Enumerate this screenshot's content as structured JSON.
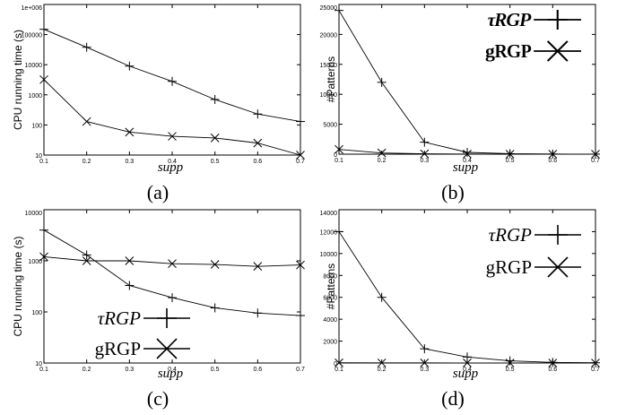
{
  "chart_data": [
    {
      "panel": "a",
      "type": "line",
      "caption": "(a)",
      "xlabel": "supp",
      "ylabel": "CPU running time (s)",
      "yscale": "log",
      "ylim": [
        10,
        1000000
      ],
      "xlim": [
        0.1,
        0.7
      ],
      "x": [
        0.1,
        0.2,
        0.3,
        0.4,
        0.5,
        0.6,
        0.7
      ],
      "x_tick_labels": [
        "0.1",
        "0.2",
        "0.3",
        "0.4",
        "0.5",
        "0.6",
        "0.7"
      ],
      "y_ticks": [
        10,
        100,
        1000,
        10000,
        100000,
        1000000
      ],
      "y_tick_labels": [
        "10",
        "100",
        "1000",
        "10000",
        "100000",
        "1e+006"
      ],
      "legend_position": "top-right",
      "series": [
        {
          "name": "τRGP",
          "marker": "plus",
          "values": [
            150000,
            38000,
            9000,
            2800,
            700,
            230,
            130
          ]
        },
        {
          "name": "gRGP",
          "marker": "cross",
          "values": [
            3200,
            130,
            58,
            42,
            37,
            25,
            10
          ]
        }
      ]
    },
    {
      "panel": "b",
      "type": "line",
      "caption": "(b)",
      "xlabel": "supp",
      "ylabel": "#Patterns",
      "yscale": "linear",
      "ylim": [
        0,
        25000
      ],
      "xlim": [
        0.1,
        0.7
      ],
      "x": [
        0.1,
        0.2,
        0.3,
        0.4,
        0.5,
        0.6,
        0.7
      ],
      "x_tick_labels": [
        "0.1",
        "0.2",
        "0.3",
        "0.4",
        "0.5",
        "0.6",
        "0.7"
      ],
      "y_ticks": [
        0,
        5000,
        10000,
        15000,
        20000,
        25000
      ],
      "y_tick_labels": [
        "0",
        "5000",
        "10000",
        "15000",
        "20000",
        "25000"
      ],
      "legend_position": "top-right",
      "series": [
        {
          "name": "τRGP",
          "marker": "plus",
          "values": [
            24000,
            12000,
            2000,
            300,
            80,
            20,
            5
          ]
        },
        {
          "name": "gRGP",
          "marker": "cross",
          "values": [
            800,
            200,
            60,
            20,
            5,
            2,
            0
          ]
        }
      ]
    },
    {
      "panel": "c",
      "type": "line",
      "caption": "(c)",
      "xlabel": "supp",
      "ylabel": "CPU running time (s)",
      "yscale": "log",
      "ylim": [
        10,
        10000
      ],
      "xlim": [
        0.1,
        0.7
      ],
      "x": [
        0.1,
        0.2,
        0.3,
        0.4,
        0.5,
        0.6,
        0.7
      ],
      "x_tick_labels": [
        "0.1",
        "0.2",
        "0.3",
        "0.4",
        "0.5",
        "0.6",
        "0.7"
      ],
      "y_ticks": [
        10,
        100,
        1000,
        10000
      ],
      "y_tick_labels": [
        "10",
        "100",
        "1000",
        "10000"
      ],
      "legend_position": "bottom-left",
      "series": [
        {
          "name": "τRGP",
          "marker": "plus",
          "values": [
            4000,
            1300,
            330,
            190,
            120,
            95,
            85
          ]
        },
        {
          "name": "gRGP",
          "marker": "cross",
          "values": [
            1200,
            1000,
            1000,
            880,
            850,
            780,
            830
          ]
        }
      ]
    },
    {
      "panel": "d",
      "type": "line",
      "caption": "(d)",
      "xlabel": "supp",
      "ylabel": "#Patterns",
      "yscale": "linear",
      "ylim": [
        0,
        14000
      ],
      "xlim": [
        0.1,
        0.7
      ],
      "x": [
        0.1,
        0.2,
        0.3,
        0.4,
        0.5,
        0.6,
        0.7
      ],
      "x_tick_labels": [
        "0.1",
        "0.2",
        "0.3",
        "0.4",
        "0.5",
        "0.6",
        "0.7"
      ],
      "y_ticks": [
        0,
        2000,
        4000,
        6000,
        8000,
        10000,
        12000,
        14000
      ],
      "y_tick_labels": [
        "0",
        "2000",
        "4000",
        "6000",
        "8000",
        "10000",
        "12000",
        "14000"
      ],
      "legend_position": "top-right",
      "series": [
        {
          "name": "τRGP",
          "marker": "plus",
          "values": [
            12000,
            6000,
            1300,
            550,
            200,
            60,
            20
          ]
        },
        {
          "name": "gRGP",
          "marker": "cross",
          "values": [
            20,
            15,
            10,
            8,
            5,
            3,
            2
          ]
        }
      ]
    }
  ]
}
